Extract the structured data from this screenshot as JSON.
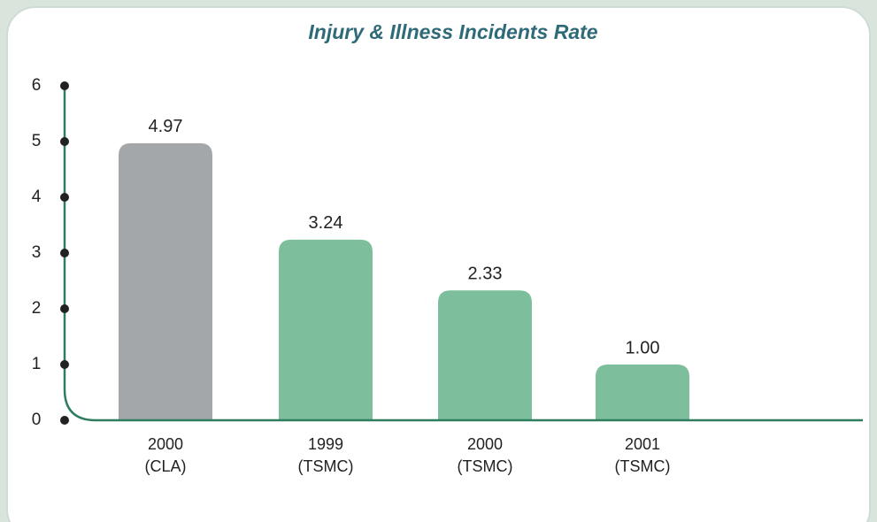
{
  "chart_data": {
    "type": "bar",
    "title": "Injury & Illness Incidents Rate",
    "categories": [
      [
        "2000",
        "(CLA)"
      ],
      [
        "1999",
        "(TSMC)"
      ],
      [
        "2000",
        "(TSMC)"
      ],
      [
        "2001",
        "(TSMC)"
      ]
    ],
    "values": [
      4.97,
      3.24,
      2.33,
      1.0
    ],
    "value_labels": [
      "4.97",
      "3.24",
      "2.33",
      "1.00"
    ],
    "colors": [
      "#a4a7aa",
      "#7dbf9c",
      "#7dbf9c",
      "#7dbf9c"
    ],
    "ylim": [
      0,
      6
    ],
    "yticks": [
      0,
      1,
      2,
      3,
      4,
      5,
      6
    ]
  }
}
